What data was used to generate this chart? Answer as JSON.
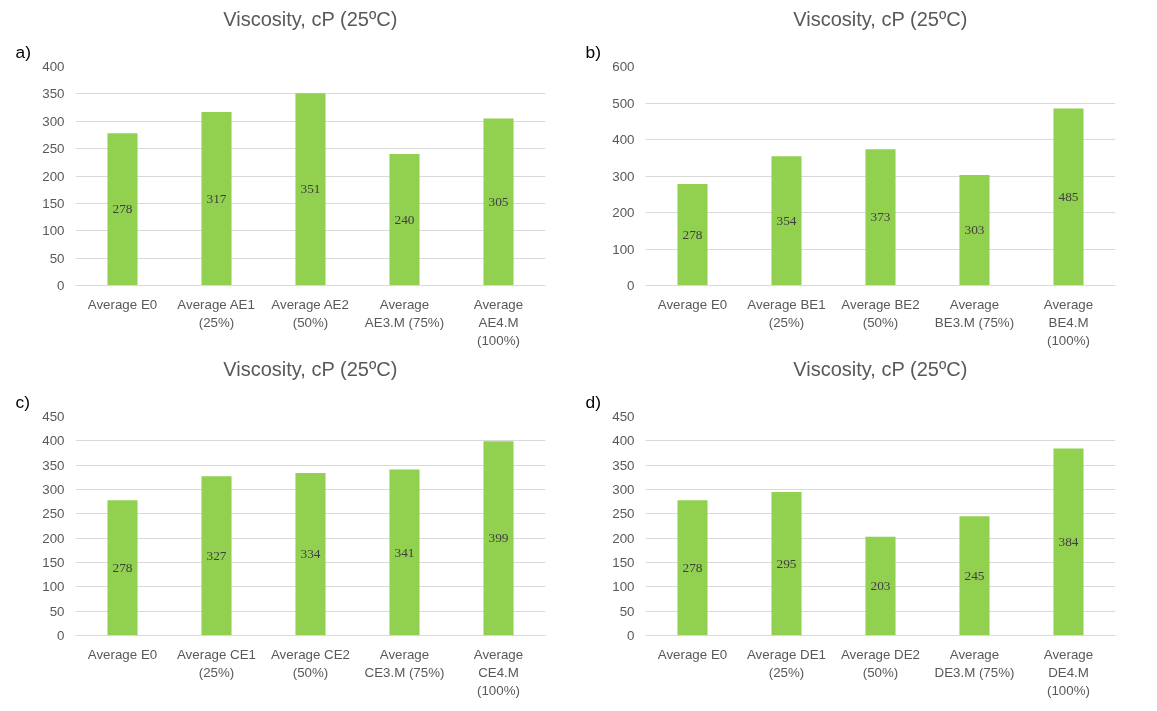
{
  "chart_data": [
    {
      "type": "bar",
      "title": "Viscosity, cP (25ºC)",
      "annotations": [
        "a)"
      ],
      "categories": [
        "Average E0",
        "Average AE1 (25%)",
        "Average AE2 (50%)",
        "Average AE3.M (75%)",
        "Average AE4.M (100%)"
      ],
      "values": [
        278,
        317,
        351,
        240,
        305
      ],
      "color": "#92d050",
      "ylim": [
        0,
        400
      ],
      "yticks": [
        0,
        50,
        100,
        150,
        200,
        250,
        300,
        350,
        400
      ],
      "grid": "y",
      "data_labels": true
    },
    {
      "type": "bar",
      "title": "Viscosity, cP (25ºC)",
      "annotations": [
        "b)"
      ],
      "categories": [
        "Average E0",
        "Average BE1 (25%)",
        "Average BE2 (50%)",
        "Average BE3.M (75%)",
        "Average BE4.M (100%)"
      ],
      "values": [
        278,
        354,
        373,
        303,
        485
      ],
      "color": "#92d050",
      "ylim": [
        0,
        600
      ],
      "yticks": [
        0,
        100,
        200,
        300,
        400,
        500,
        600
      ],
      "grid": "y",
      "data_labels": true
    },
    {
      "type": "bar",
      "title": "Viscosity, cP (25ºC)",
      "annotations": [
        "c)"
      ],
      "categories": [
        "Average E0",
        "Average CE1 (25%)",
        "Average CE2 (50%)",
        "Average CE3.M (75%)",
        "Average CE4.M (100%)"
      ],
      "values": [
        278,
        327,
        334,
        341,
        399
      ],
      "color": "#92d050",
      "ylim": [
        0,
        450
      ],
      "yticks": [
        0,
        50,
        100,
        150,
        200,
        250,
        300,
        350,
        400,
        450
      ],
      "grid": "y",
      "data_labels": true
    },
    {
      "type": "bar",
      "title": "Viscosity, cP (25ºC)",
      "annotations": [
        "d)"
      ],
      "categories": [
        "Average E0",
        "Average DE1 (25%)",
        "Average DE2 (50%)",
        "Average DE3.M (75%)",
        "Average DE4.M (100%)"
      ],
      "values": [
        278,
        295,
        203,
        245,
        384
      ],
      "color": "#92d050",
      "ylim": [
        0,
        450
      ],
      "yticks": [
        0,
        50,
        100,
        150,
        200,
        250,
        300,
        350,
        400,
        450
      ],
      "grid": "y",
      "data_labels": true
    }
  ]
}
